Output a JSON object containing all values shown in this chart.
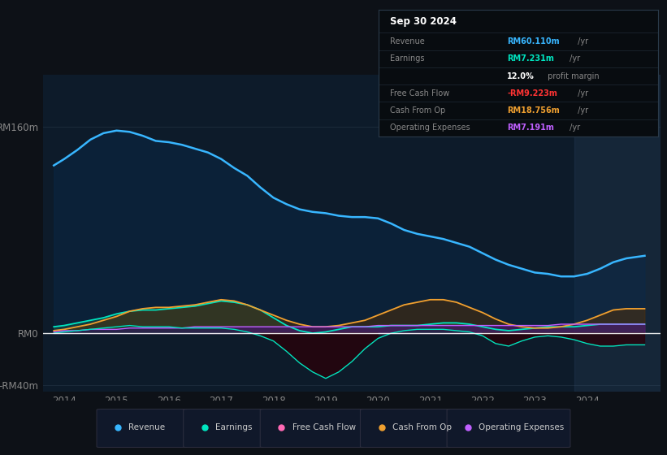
{
  "bg_color": "#0d1117",
  "chart_bg": "#0d1b2a",
  "title": "Sep 30 2024",
  "info_box_rows": [
    {
      "label": "Revenue",
      "value": "RM60.110m",
      "suffix": " /yr",
      "color": "#38b6ff"
    },
    {
      "label": "Earnings",
      "value": "RM7.231m",
      "suffix": " /yr",
      "color": "#00e5c0"
    },
    {
      "label": "",
      "value": "12.0%",
      "suffix": " profit margin",
      "color": "#ffffff"
    },
    {
      "label": "Free Cash Flow",
      "value": "-RM9.223m",
      "suffix": " /yr",
      "color": "#ff3333"
    },
    {
      "label": "Cash From Op",
      "value": "RM18.756m",
      "suffix": " /yr",
      "color": "#f0a030"
    },
    {
      "label": "Operating Expenses",
      "value": "RM7.191m",
      "suffix": " /yr",
      "color": "#c060ff"
    }
  ],
  "ylim": [
    -45,
    200
  ],
  "yticks": [
    -40,
    0,
    160
  ],
  "ytick_labels": [
    "-RM40m",
    "RM0",
    "RM160m"
  ],
  "xlim_start": 2013.6,
  "xlim_end": 2025.4,
  "xtick_years": [
    2014,
    2015,
    2016,
    2017,
    2018,
    2019,
    2020,
    2021,
    2022,
    2023,
    2024
  ],
  "shaded_region_start": 2023.75,
  "legend": [
    {
      "label": "Revenue",
      "color": "#38b6ff"
    },
    {
      "label": "Earnings",
      "color": "#00e5c0"
    },
    {
      "label": "Free Cash Flow",
      "color": "#ff69b4"
    },
    {
      "label": "Cash From Op",
      "color": "#f0a030"
    },
    {
      "label": "Operating Expenses",
      "color": "#c060ff"
    }
  ],
  "years": [
    2013.8,
    2014.0,
    2014.25,
    2014.5,
    2014.75,
    2015.0,
    2015.25,
    2015.5,
    2015.75,
    2016.0,
    2016.25,
    2016.5,
    2016.75,
    2017.0,
    2017.25,
    2017.5,
    2017.75,
    2018.0,
    2018.25,
    2018.5,
    2018.75,
    2019.0,
    2019.25,
    2019.5,
    2019.75,
    2020.0,
    2020.25,
    2020.5,
    2020.75,
    2021.0,
    2021.25,
    2021.5,
    2021.75,
    2022.0,
    2022.25,
    2022.5,
    2022.75,
    2023.0,
    2023.25,
    2023.5,
    2023.75,
    2024.0,
    2024.25,
    2024.5,
    2024.75,
    2025.1
  ],
  "revenue": [
    130,
    135,
    142,
    150,
    155,
    157,
    156,
    153,
    149,
    148,
    146,
    143,
    140,
    135,
    128,
    122,
    113,
    105,
    100,
    96,
    94,
    93,
    91,
    90,
    90,
    89,
    85,
    80,
    77,
    75,
    73,
    70,
    67,
    62,
    57,
    53,
    50,
    47,
    46,
    44,
    44,
    46,
    50,
    55,
    58,
    60
  ],
  "earnings": [
    5,
    6,
    8,
    10,
    12,
    15,
    17,
    18,
    18,
    19,
    20,
    21,
    23,
    25,
    24,
    22,
    18,
    12,
    6,
    2,
    0,
    1,
    3,
    5,
    5,
    5,
    6,
    6,
    6,
    7,
    8,
    8,
    7,
    5,
    3,
    2,
    3,
    4,
    5,
    5,
    5,
    6,
    7,
    7,
    7,
    7
  ],
  "free_cash": [
    0,
    1,
    2,
    3,
    4,
    5,
    6,
    5,
    5,
    5,
    4,
    4,
    4,
    4,
    3,
    1,
    -2,
    -6,
    -14,
    -23,
    -30,
    -35,
    -30,
    -22,
    -12,
    -4,
    0,
    2,
    3,
    3,
    3,
    2,
    1,
    -2,
    -8,
    -10,
    -6,
    -3,
    -2,
    -3,
    -5,
    -8,
    -10,
    -10,
    -9,
    -9
  ],
  "cash_from_op": [
    2,
    3,
    5,
    7,
    10,
    13,
    17,
    19,
    20,
    20,
    21,
    22,
    24,
    26,
    25,
    22,
    18,
    14,
    10,
    7,
    5,
    5,
    6,
    8,
    10,
    14,
    18,
    22,
    24,
    26,
    26,
    24,
    20,
    16,
    11,
    7,
    5,
    4,
    4,
    5,
    7,
    10,
    14,
    18,
    19,
    19
  ],
  "op_expenses": [
    1,
    2,
    2,
    3,
    3,
    3,
    4,
    4,
    4,
    4,
    4,
    5,
    5,
    5,
    5,
    5,
    5,
    5,
    5,
    5,
    5,
    5,
    5,
    5,
    5,
    6,
    6,
    6,
    6,
    6,
    6,
    6,
    6,
    6,
    6,
    6,
    6,
    6,
    6,
    7,
    7,
    7,
    7,
    7,
    7,
    7
  ]
}
